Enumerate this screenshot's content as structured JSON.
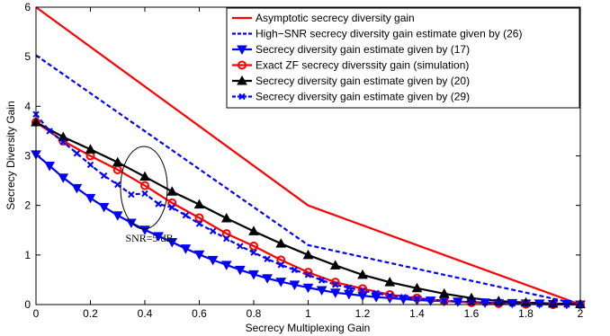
{
  "chart_data": {
    "type": "line",
    "xlabel": "Secrecy Multiplexing Gain",
    "ylabel": "Secrecy Diversity Gain",
    "xlim": [
      0,
      2
    ],
    "ylim": [
      0,
      6
    ],
    "xticks": [
      "0",
      "0.2",
      "0.4",
      "0.6",
      "0.8",
      "1",
      "1.2",
      "1.4",
      "1.6",
      "1.8",
      "2"
    ],
    "yticks": [
      "0",
      "1",
      "2",
      "3",
      "4",
      "5",
      "6"
    ],
    "grid": false,
    "legend_position": "top-right",
    "annotation": "SNR=5 dB",
    "series": [
      {
        "name": "Asymptotic secrecy diversity gain",
        "color": "#ff0000",
        "dash": "solid",
        "marker": "none",
        "x": [
          0,
          1,
          2
        ],
        "y": [
          6,
          2,
          0
        ]
      },
      {
        "name": "High−SNR secrecy diversity gain estimate given by (26)",
        "color": "#0000ff",
        "dash": "dashed",
        "marker": "none",
        "x": [
          0,
          1,
          2
        ],
        "y": [
          5.03,
          1.2,
          0
        ]
      },
      {
        "name": "Secrecy diversity gain estimate given by (17)",
        "color": "#0000ff",
        "dash": "solid",
        "marker": "triangle-down",
        "x": [
          0,
          0.05,
          0.1,
          0.15,
          0.2,
          0.25,
          0.3,
          0.35,
          0.4,
          0.45,
          0.5,
          0.55,
          0.6,
          0.65,
          0.7,
          0.75,
          0.8,
          0.85,
          0.9,
          0.95,
          1.0,
          1.05,
          1.1,
          1.15,
          1.2,
          1.25,
          1.3,
          1.35,
          1.4,
          1.45,
          1.5,
          1.55,
          1.6,
          1.65,
          1.7,
          1.75,
          1.8,
          1.85,
          1.9,
          1.95,
          2.0
        ],
        "y": [
          3.03,
          2.8,
          2.56,
          2.35,
          2.15,
          1.97,
          1.8,
          1.65,
          1.51,
          1.38,
          1.26,
          1.13,
          1.01,
          0.9,
          0.8,
          0.7,
          0.61,
          0.53,
          0.46,
          0.4,
          0.34,
          0.29,
          0.24,
          0.21,
          0.18,
          0.15,
          0.13,
          0.11,
          0.09,
          0.08,
          0.07,
          0.06,
          0.05,
          0.04,
          0.03,
          0.03,
          0.02,
          0.02,
          0.01,
          0.01,
          0.0
        ]
      },
      {
        "name": "Exact ZF secrecy diverssity gain (simulation)",
        "color": "#ff0000",
        "dash": "solid",
        "marker": "circle",
        "x": [
          0,
          0.1,
          0.2,
          0.3,
          0.4,
          0.5,
          0.6,
          0.7,
          0.8,
          0.9,
          1.0,
          1.1,
          1.2,
          1.3,
          1.4,
          1.5,
          1.6,
          1.7,
          1.8,
          1.9,
          2.0
        ],
        "y": [
          3.68,
          3.3,
          3.0,
          2.72,
          2.4,
          2.05,
          1.75,
          1.43,
          1.18,
          0.9,
          0.65,
          0.45,
          0.32,
          0.2,
          0.13,
          0.07,
          0.04,
          0.02,
          0.01,
          0.0,
          0.0
        ]
      },
      {
        "name": "Secrecy diversity gain estimate given by (20)",
        "color": "#000000",
        "dash": "solid",
        "marker": "triangle-up",
        "x": [
          0,
          0.1,
          0.2,
          0.3,
          0.4,
          0.5,
          0.6,
          0.7,
          0.8,
          0.9,
          1.0,
          1.1,
          1.2,
          1.3,
          1.4,
          1.5,
          1.6,
          1.7,
          1.8,
          1.9,
          2.0
        ],
        "y": [
          3.68,
          3.38,
          3.13,
          2.87,
          2.58,
          2.28,
          2.02,
          1.74,
          1.48,
          1.23,
          1.0,
          0.79,
          0.6,
          0.45,
          0.33,
          0.22,
          0.13,
          0.07,
          0.04,
          0.02,
          0.01
        ]
      },
      {
        "name": "Secrecy diversity gain estimate given by (29)",
        "color": "#0000ff",
        "dash": "dashed",
        "marker": "x",
        "x": [
          0,
          0.05,
          0.1,
          0.15,
          0.2,
          0.25,
          0.3,
          0.35,
          0.4,
          0.45,
          0.5,
          0.55,
          0.6,
          0.65,
          0.7,
          0.75,
          0.8,
          0.85,
          0.9,
          0.95,
          1.0,
          1.05,
          1.1,
          1.15,
          1.2,
          1.25,
          1.3,
          1.35,
          1.4,
          1.45,
          1.5,
          1.55,
          1.6,
          1.65,
          1.7,
          1.75,
          1.8,
          1.85,
          1.9,
          1.95,
          2.0
        ],
        "y": [
          3.84,
          3.5,
          3.28,
          3.05,
          2.82,
          2.6,
          2.42,
          2.22,
          2.24,
          2.03,
          1.96,
          1.8,
          1.63,
          1.48,
          1.33,
          1.18,
          1.05,
          0.92,
          0.8,
          0.7,
          0.6,
          0.49,
          0.4,
          0.34,
          0.28,
          0.23,
          0.18,
          0.15,
          0.12,
          0.1,
          0.08,
          0.06,
          0.05,
          0.04,
          0.03,
          0.02,
          0.02,
          0.01,
          0.01,
          0.0,
          0.0
        ]
      }
    ]
  }
}
